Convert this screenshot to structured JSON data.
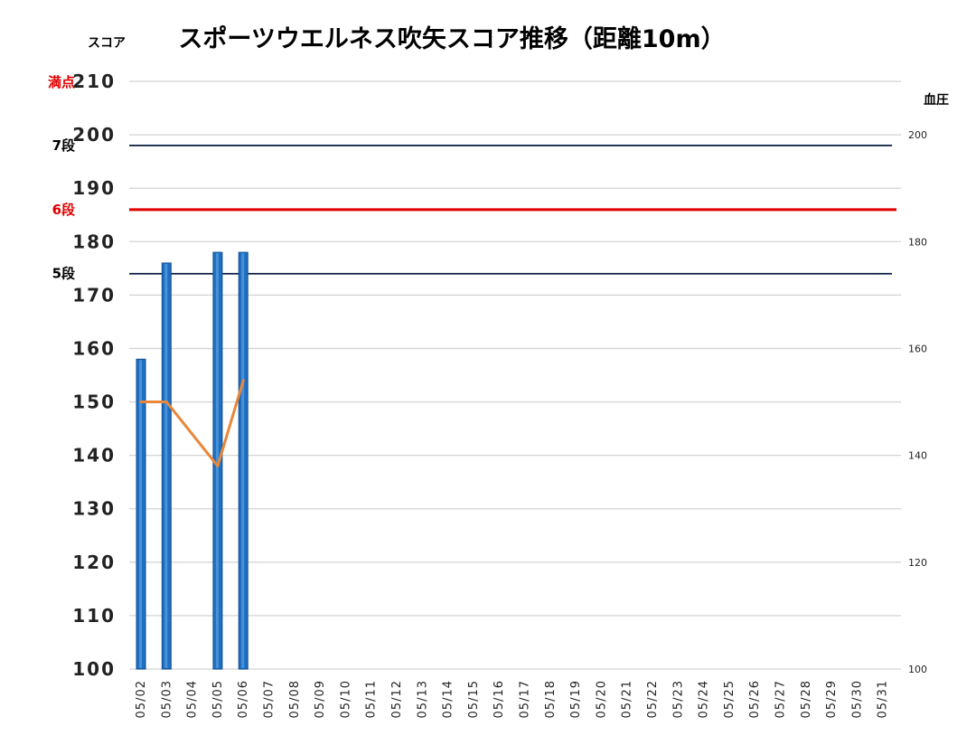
{
  "chart_data": {
    "type": "bar",
    "title": "スポーツウエルネス吹矢スコア推移（距離10m）",
    "ylabel": "スコア",
    "y2label": "血圧",
    "ylim": [
      100,
      210
    ],
    "y2lim": [
      100,
      210
    ],
    "y_ticks": [
      "100",
      "110",
      "120",
      "130",
      "140",
      "150",
      "160",
      "170",
      "180",
      "190",
      "200",
      "210"
    ],
    "y2_ticks": [
      "100",
      "120",
      "140",
      "160",
      "180",
      "200"
    ],
    "grid": true,
    "categories": [
      "05/02",
      "05/03",
      "05/04",
      "05/05",
      "05/06",
      "05/07",
      "05/08",
      "05/09",
      "05/10",
      "05/11",
      "05/12",
      "05/13",
      "05/14",
      "05/15",
      "05/16",
      "05/17",
      "05/18",
      "05/19",
      "05/20",
      "05/21",
      "05/22",
      "05/23",
      "05/24",
      "05/25",
      "05/26",
      "05/27",
      "05/28",
      "05/29",
      "05/30",
      "05/31"
    ],
    "series": [
      {
        "type": "bar",
        "axis": "left",
        "color": "#1f6fc0",
        "values": [
          158,
          176,
          null,
          178,
          178,
          null,
          null,
          null,
          null,
          null,
          null,
          null,
          null,
          null,
          null,
          null,
          null,
          null,
          null,
          null,
          null,
          null,
          null,
          null,
          null,
          null,
          null,
          null,
          null,
          null
        ]
      },
      {
        "type": "line",
        "axis": "right",
        "color": "#e8873a",
        "values": [
          150,
          150,
          null,
          138,
          154,
          null,
          null,
          null,
          null,
          null,
          null,
          null,
          null,
          null,
          null,
          null,
          null,
          null,
          null,
          null,
          null,
          null,
          null,
          null,
          null,
          null,
          null,
          null,
          null,
          null
        ]
      }
    ],
    "reference_lines": [
      {
        "label": "満点",
        "value": 210,
        "color": "#e00000",
        "line_color": "#d0d0d0"
      },
      {
        "label": "7段",
        "value": 198,
        "color": "#000000",
        "line_color": "#0a1a40"
      },
      {
        "label": "6段",
        "value": 186,
        "color": "#e00000",
        "line_color": "#e00000"
      },
      {
        "label": "5段",
        "value": 174,
        "color": "#000000",
        "line_color": "#0a1a40"
      }
    ]
  }
}
